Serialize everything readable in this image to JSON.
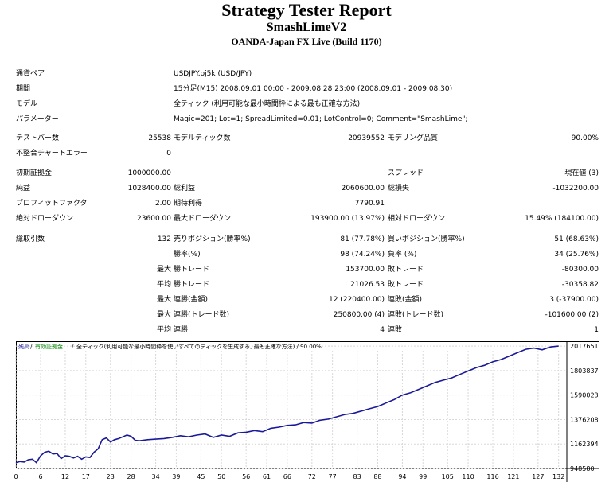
{
  "header": {
    "title": "Strategy Tester Report",
    "ea_name": "SmashLimeV2",
    "server": "OANDA-Japan FX Live (Build 1170)"
  },
  "info": {
    "symbol_label": "通貨ペア",
    "symbol_value": "USDJPY.oj5k (USD/JPY)",
    "period_label": "期間",
    "period_value": "15分足(M15) 2008.09.01 00:00 - 2009.08.28 23:00 (2008.09.01 - 2009.08.30)",
    "model_label": "モデル",
    "model_value": "全ティック (利用可能な最小時間枠による最も正確な方法)",
    "params_label": "パラメーター",
    "params_value": "Magic=201; Lot=1; SpreadLimited=0.01; LotControl=0; Comment=\"SmashLime\";"
  },
  "stats": {
    "bars_label": "テストバー数",
    "bars_value": "25538",
    "ticks_label": "モデルティック数",
    "ticks_value": "20939552",
    "quality_label": "モデリング品質",
    "quality_value": "90.00%",
    "mismatch_label": "不整合チャートエラー",
    "mismatch_value": "0",
    "deposit_label": "初期証拠金",
    "deposit_value": "1000000.00",
    "spread_label": "スプレッド",
    "spread_value": "現在値 (3)",
    "net_label": "純益",
    "net_value": "1028400.00",
    "gross_profit_label": "総利益",
    "gross_profit_value": "2060600.00",
    "gross_loss_label": "総損失",
    "gross_loss_value": "-1032200.00",
    "pf_label": "プロフィットファクタ",
    "pf_value": "2.00",
    "payoff_label": "期待利得",
    "payoff_value": "7790.91",
    "abs_dd_label": "絶対ドローダウン",
    "abs_dd_value": "23600.00",
    "max_dd_label": "最大ドローダウン",
    "max_dd_value": "193900.00 (13.97%)",
    "rel_dd_label": "相対ドローダウン",
    "rel_dd_value": "15.49% (184100.00)",
    "trades_label": "総取引数",
    "trades_value": "132",
    "short_label": "売りポジション(勝率%)",
    "short_value": "81 (77.78%)",
    "long_label": "買いポジション(勝率%)",
    "long_value": "51 (68.63%)",
    "winrate_label": "勝率(%)",
    "winrate_value": "98 (74.24%)",
    "lossrate_label": "負率 (%)",
    "lossrate_value": "34 (25.76%)",
    "max_prefix": "最大",
    "avg_prefix": "平均",
    "largest_win_label": "勝トレード",
    "largest_win_value": "153700.00",
    "largest_loss_label": "敗トレード",
    "largest_loss_value": "-80300.00",
    "avg_win_label": "勝トレード",
    "avg_win_value": "21026.53",
    "avg_loss_label": "敗トレード",
    "avg_loss_value": "-30358.82",
    "cons_wins_amt_label": "連勝(金額)",
    "cons_wins_amt_value": "12 (220400.00)",
    "cons_loss_amt_label": "連敗(金額)",
    "cons_loss_amt_value": "3 (-37900.00)",
    "cons_wins_tr_label": "連勝(トレード数)",
    "cons_wins_tr_value": "250800.00 (4)",
    "cons_loss_tr_label": "連敗(トレード数)",
    "cons_loss_tr_value": "-101600.00 (2)",
    "avg_cons_win_label": "連勝",
    "avg_cons_win_value": "4",
    "avg_cons_loss_label": "連敗",
    "avg_cons_loss_value": "1"
  },
  "chart_data": {
    "type": "line",
    "legend_balance": "残高",
    "legend_equity": "有効証拠金",
    "legend_rest": "全ティック(利用可能な最小時間枠を使いすべてのティックを生成する, 最も正確な方法) / 90.00%",
    "series_color": "#1a1a99",
    "x_ticks": [
      "0",
      "6",
      "12",
      "17",
      "23",
      "28",
      "34",
      "39",
      "45",
      "50",
      "56",
      "61",
      "66",
      "72",
      "77",
      "83",
      "88",
      "94",
      "99",
      "105",
      "110",
      "116",
      "121",
      "127",
      "132"
    ],
    "y_ticks": [
      "948580",
      "1162394",
      "1376208",
      "1590023",
      "1803837",
      "2017651"
    ],
    "ylim": [
      948580,
      2060000
    ],
    "xlim": [
      0,
      134
    ],
    "x": [
      0,
      1,
      2,
      3,
      4,
      5,
      6,
      7,
      8,
      9,
      10,
      11,
      12,
      13,
      14,
      15,
      16,
      17,
      18,
      19,
      20,
      21,
      22,
      23,
      24,
      25,
      26,
      27,
      28,
      29,
      30,
      32,
      34,
      36,
      38,
      40,
      42,
      44,
      46,
      48,
      50,
      52,
      54,
      56,
      58,
      60,
      62,
      64,
      66,
      68,
      70,
      72,
      74,
      76,
      78,
      80,
      82,
      84,
      86,
      88,
      90,
      92,
      94,
      96,
      98,
      100,
      102,
      104,
      106,
      108,
      110,
      112,
      114,
      116,
      118,
      120,
      122,
      124,
      126,
      128,
      130,
      132
    ],
    "y": [
      1000000,
      1010000,
      1005000,
      1025000,
      1030000,
      1000000,
      1060000,
      1090000,
      1100000,
      1075000,
      1080000,
      1035000,
      1060000,
      1055000,
      1040000,
      1055000,
      1030000,
      1050000,
      1045000,
      1090000,
      1120000,
      1200000,
      1215000,
      1180000,
      1200000,
      1210000,
      1225000,
      1240000,
      1230000,
      1195000,
      1190000,
      1200000,
      1205000,
      1210000,
      1220000,
      1235000,
      1225000,
      1240000,
      1250000,
      1220000,
      1240000,
      1230000,
      1260000,
      1265000,
      1280000,
      1270000,
      1300000,
      1310000,
      1325000,
      1330000,
      1350000,
      1345000,
      1370000,
      1380000,
      1400000,
      1420000,
      1430000,
      1450000,
      1470000,
      1490000,
      1520000,
      1550000,
      1590000,
      1610000,
      1640000,
      1670000,
      1700000,
      1720000,
      1740000,
      1770000,
      1800000,
      1830000,
      1850000,
      1880000,
      1900000,
      1930000,
      1960000,
      1990000,
      2000000,
      1985000,
      2010000,
      2017651
    ]
  }
}
